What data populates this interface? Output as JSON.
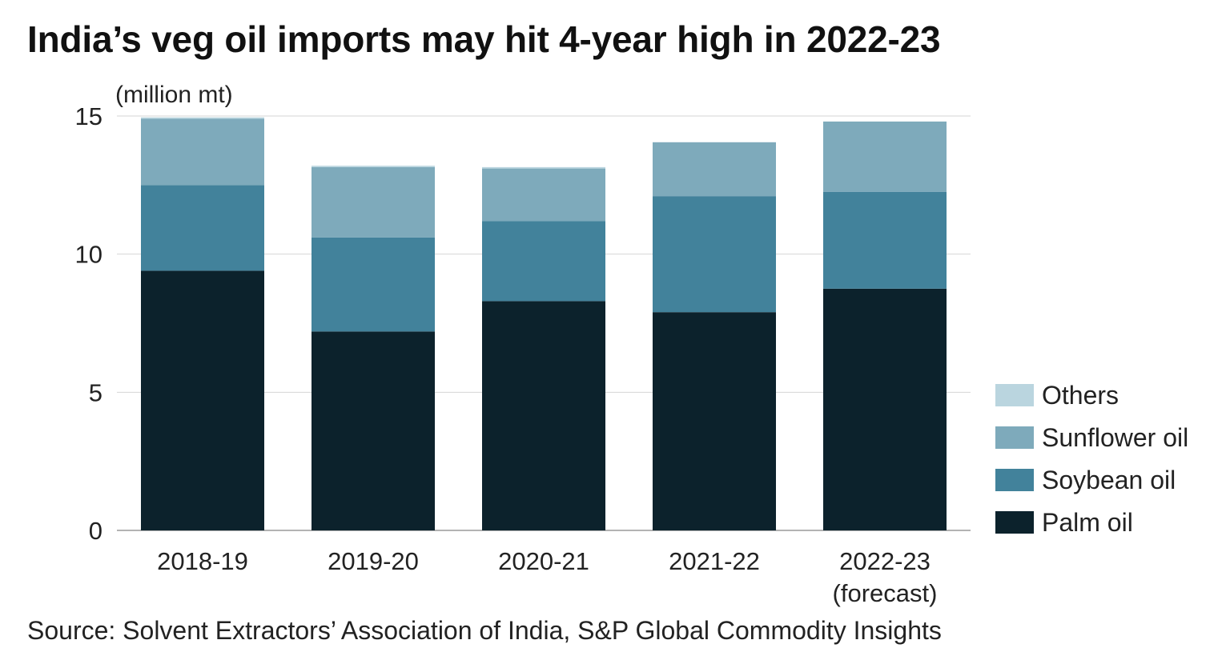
{
  "title": "India’s veg oil imports may hit 4-year high in 2022-23",
  "source": "Source: Solvent Extractors’ Association of India, S&P Global Commodity Insights",
  "chart_data": {
    "type": "bar",
    "stacked": true,
    "title": "India’s veg oil imports may hit 4-year high in 2022-23",
    "ylabel": "(million mt)",
    "xlabel": "",
    "ylim": [
      0,
      15
    ],
    "yticks": [
      0,
      5,
      10,
      15
    ],
    "grid": true,
    "legend_position": "right",
    "categories": [
      [
        "2018-19"
      ],
      [
        "2019-20"
      ],
      [
        "2020-21"
      ],
      [
        "2021-22"
      ],
      [
        "2022-23",
        "(forecast)"
      ]
    ],
    "series": [
      {
        "name": "Palm oil",
        "color": "#0c222c",
        "values": [
          9.4,
          7.2,
          8.3,
          7.9,
          8.75
        ]
      },
      {
        "name": "Soybean oil",
        "color": "#42829b",
        "values": [
          3.1,
          3.4,
          2.9,
          4.2,
          3.5
        ]
      },
      {
        "name": "Sunflower oil",
        "color": "#7eaabb",
        "values": [
          2.4,
          2.55,
          1.9,
          1.95,
          2.55
        ]
      },
      {
        "name": "Others",
        "color": "#bad5df",
        "values": [
          0.05,
          0.05,
          0.05,
          0.0,
          0.0
        ]
      }
    ]
  }
}
